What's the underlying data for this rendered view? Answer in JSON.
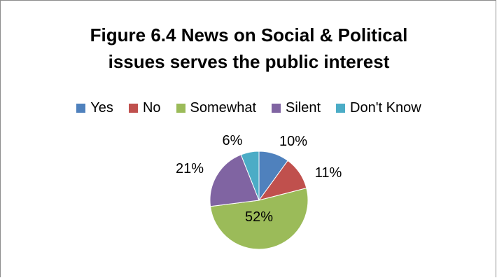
{
  "chart_data": {
    "type": "pie",
    "title": "Figure 6.4 News on Social & Political\nissues serves the public interest",
    "categories": [
      "Yes",
      "No",
      "Somewhat",
      "Silent",
      "Don't Know"
    ],
    "values": [
      10,
      11,
      52,
      21,
      6
    ],
    "data_labels": [
      "10%",
      "11%",
      "52%",
      "21%",
      "6%"
    ],
    "colors": [
      "#4F81BD",
      "#C0504D",
      "#9BBB59",
      "#8064A2",
      "#4BACC6"
    ],
    "legend_position": "top",
    "start_angle": "12 o'clock",
    "direction": "clockwise"
  }
}
